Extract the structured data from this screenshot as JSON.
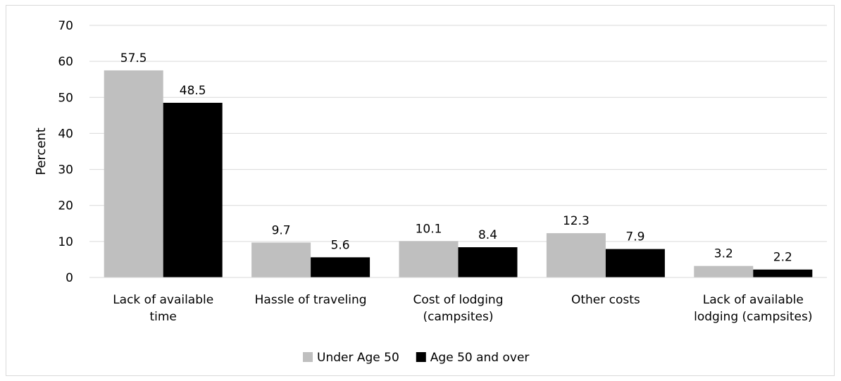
{
  "chart_data": {
    "type": "bar",
    "title": "",
    "xlabel": "",
    "ylabel": "Percent",
    "ylim": [
      0,
      70
    ],
    "yticks": [
      0,
      10,
      20,
      30,
      40,
      50,
      60,
      70
    ],
    "grid": true,
    "legend_position": "bottom",
    "categories": [
      [
        "Lack of available",
        "time"
      ],
      [
        "Hassle of traveling"
      ],
      [
        "Cost of lodging",
        "(campsites)"
      ],
      [
        "Other costs"
      ],
      [
        "Lack of available",
        "lodging (campsites)"
      ]
    ],
    "series": [
      {
        "name": "Under Age 50",
        "color": "#bfbfbf",
        "values": [
          57.5,
          9.7,
          10.1,
          12.3,
          3.2
        ]
      },
      {
        "name": "Age 50 and over",
        "color": "#000000",
        "values": [
          48.5,
          5.6,
          8.4,
          7.9,
          2.2
        ]
      }
    ]
  }
}
